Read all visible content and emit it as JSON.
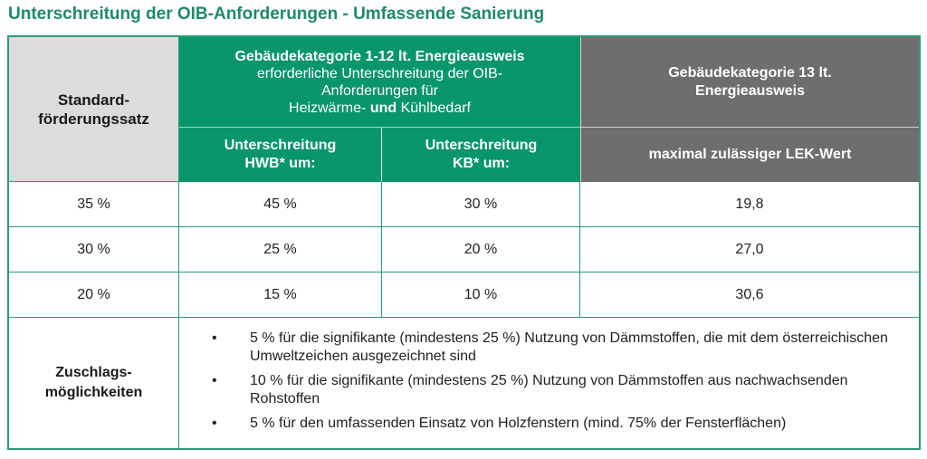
{
  "title": "Unterschreitung der OIB-Anforderungen - Umfassende Sanierung",
  "colors": {
    "title": "#1e8a65",
    "green_header": "#07956a",
    "grey_header": "#6e6e6e",
    "light_header": "#dcdcdc",
    "border": "#2e9a76"
  },
  "table": {
    "header": {
      "standard": [
        "Standard-",
        "förderungssatz"
      ],
      "group_1_12": {
        "line1": "Gebäudekategorie 1-12 lt. Energieausweis",
        "line2": "erforderliche Unterschreitung der OIB-",
        "line3": "Anforderungen für",
        "line4_part1": "Heizwärme-",
        "line4_bold": "und",
        "line4_part2": "Kühlbedarf"
      },
      "group_13": [
        "Gebäudekategorie 13 lt.",
        "Energieausweis"
      ],
      "hwb": [
        "Unterschreitung",
        "HWB* um:"
      ],
      "kb": [
        "Unterschreitung",
        "KB* um:"
      ],
      "lek": "maximal zulässiger LEK-Wert"
    },
    "rows": [
      {
        "standard": "35 %",
        "hwb": "45 %",
        "kb": "30 %",
        "lek": "19,8"
      },
      {
        "standard": "30 %",
        "hwb": "25 %",
        "kb": "20 %",
        "lek": "27,0"
      },
      {
        "standard": "20 %",
        "hwb": "15 %",
        "kb": "10 %",
        "lek": "30,6"
      }
    ],
    "zuschlag": {
      "label": [
        "Zuschlags-",
        "möglichkeiten"
      ],
      "bullet": "•",
      "items": [
        "5 % für die signifikante (mindestens 25 %) Nutzung von Dämmstoffen, die mit dem österreichischen Umweltzeichen ausgezeichnet sind",
        "10 % für die signifikante (mindestens 25 %) Nutzung von Dämmstoffen aus nachwachsenden Rohstoffen",
        "5 % für den umfassenden Einsatz von Holzfenstern (mind. 75% der Fensterflächen)"
      ]
    }
  }
}
